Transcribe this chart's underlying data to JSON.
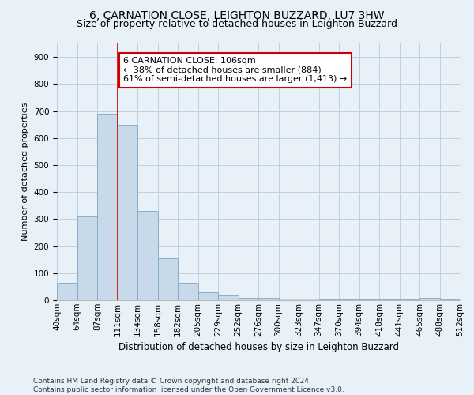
{
  "title": "6, CARNATION CLOSE, LEIGHTON BUZZARD, LU7 3HW",
  "subtitle": "Size of property relative to detached houses in Leighton Buzzard",
  "xlabel": "Distribution of detached houses by size in Leighton Buzzard",
  "ylabel": "Number of detached properties",
  "bar_values": [
    65,
    310,
    690,
    650,
    330,
    155,
    65,
    30,
    18,
    10,
    8,
    5,
    5,
    4,
    3,
    3,
    2,
    2,
    10,
    2
  ],
  "categories": [
    "40sqm",
    "64sqm",
    "87sqm",
    "111sqm",
    "134sqm",
    "158sqm",
    "182sqm",
    "205sqm",
    "229sqm",
    "252sqm",
    "276sqm",
    "300sqm",
    "323sqm",
    "347sqm",
    "370sqm",
    "394sqm",
    "418sqm",
    "441sqm",
    "465sqm",
    "488sqm",
    "512sqm"
  ],
  "bar_color": "#c8d9ea",
  "bar_edge_color": "#7ba8c8",
  "grid_color": "#c0d0e0",
  "bg_color": "#e8f0f8",
  "vline_color": "#cc0000",
  "annotation_text": "6 CARNATION CLOSE: 106sqm\n← 38% of detached houses are smaller (884)\n61% of semi-detached houses are larger (1,413) →",
  "annotation_box_color": "#ffffff",
  "annotation_border_color": "#cc0000",
  "ylim": [
    0,
    950
  ],
  "yticks": [
    0,
    100,
    200,
    300,
    400,
    500,
    600,
    700,
    800,
    900
  ],
  "footer": "Contains HM Land Registry data © Crown copyright and database right 2024.\nContains public sector information licensed under the Open Government Licence v3.0.",
  "title_fontsize": 10,
  "subtitle_fontsize": 9,
  "xlabel_fontsize": 8.5,
  "ylabel_fontsize": 8,
  "tick_fontsize": 7.5,
  "annotation_fontsize": 8,
  "footer_fontsize": 6.5
}
